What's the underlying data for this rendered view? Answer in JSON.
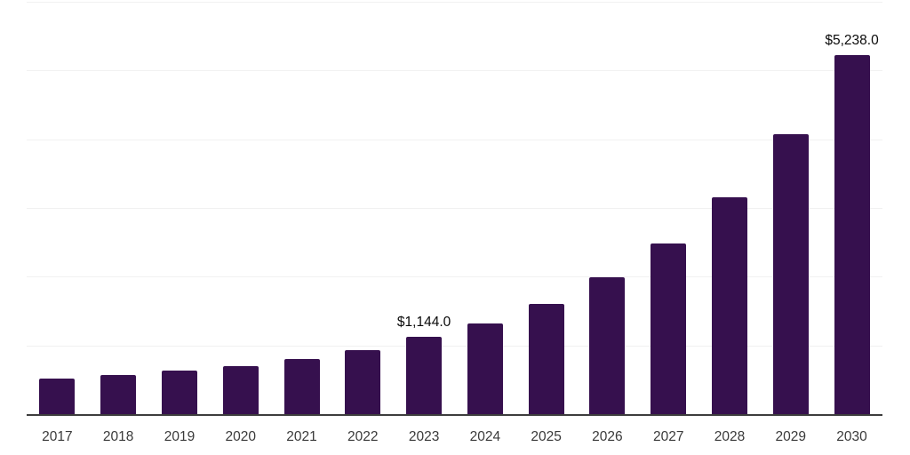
{
  "chart_data": {
    "type": "bar",
    "title": "",
    "xlabel": "",
    "ylabel": "",
    "categories": [
      "2017",
      "2018",
      "2019",
      "2020",
      "2021",
      "2022",
      "2023",
      "2024",
      "2025",
      "2026",
      "2027",
      "2028",
      "2029",
      "2030"
    ],
    "values": [
      530,
      585,
      645,
      715,
      820,
      950,
      1144,
      1335,
      1620,
      2000,
      2490,
      3170,
      4080,
      5238
    ],
    "value_labels": [
      "",
      "",
      "",
      "",
      "",
      "",
      "$1,144.0",
      "",
      "",
      "",
      "",
      "",
      "",
      "$5,238.0"
    ],
    "ylim": [
      0,
      6000
    ],
    "gridline_step": 1000,
    "grid": "horizontal",
    "legend": "none",
    "y_axis_labels_visible": false,
    "colors": {
      "bar": "#36104E",
      "gridline": "#F1F1F1",
      "axis_line": "#3D3D3D",
      "tick_label": "#3A3A3A",
      "value_label": "#0A0A0A",
      "background": "#FFFFFF"
    }
  }
}
